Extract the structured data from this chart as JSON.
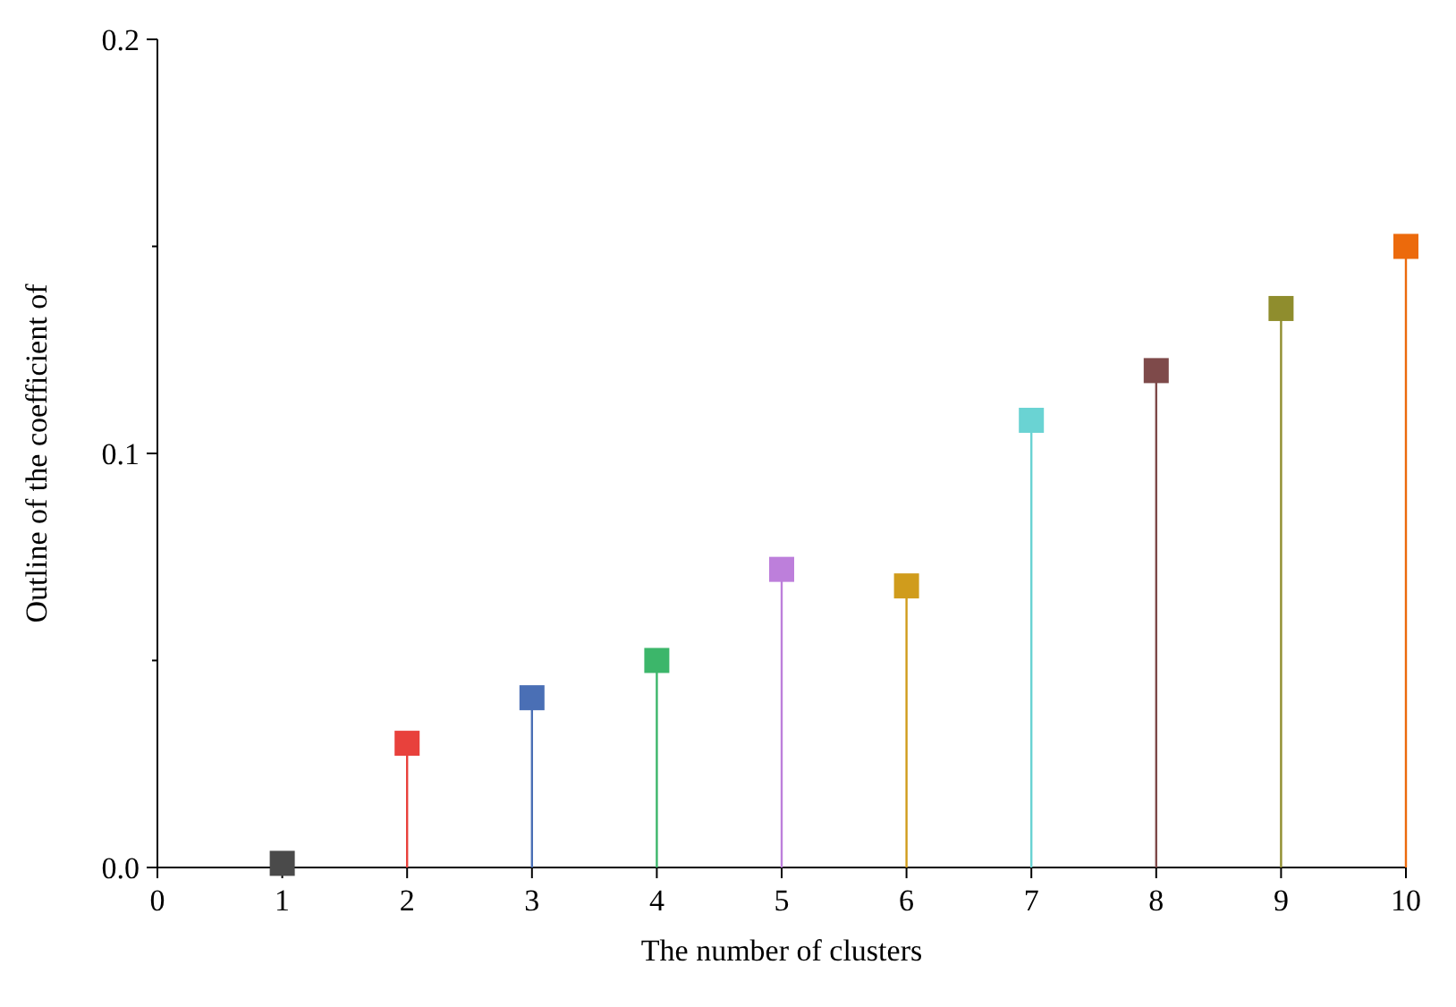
{
  "chart_data": {
    "type": "lollipop",
    "xlabel": "The number of clusters",
    "ylabel": "Outline of the coefficient of",
    "x": [
      1,
      2,
      3,
      4,
      5,
      6,
      7,
      8,
      9,
      10
    ],
    "values": [
      0.001,
      0.03,
      0.041,
      0.05,
      0.072,
      0.068,
      0.108,
      0.12,
      0.135,
      0.15
    ],
    "colors": [
      "#4a4a4a",
      "#e8413c",
      "#4a6fb5",
      "#3cb66a",
      "#bd7fdb",
      "#d09c1c",
      "#6ad3d3",
      "#7e4a4a",
      "#8f8d2d",
      "#ec6a0c"
    ],
    "xlim": [
      0,
      10
    ],
    "xticks": [
      0,
      1,
      2,
      3,
      4,
      5,
      6,
      7,
      8,
      9,
      10
    ],
    "ylim": [
      0,
      0.2
    ],
    "yticks": [
      {
        "value": 0,
        "label": "0.0"
      },
      {
        "value": 0.05,
        "label": null
      },
      {
        "value": 0.1,
        "label": "0.1"
      },
      {
        "value": 0.15,
        "label": null
      },
      {
        "value": 0.2,
        "label": "0.2"
      }
    ],
    "marker": "square",
    "grid": false
  }
}
